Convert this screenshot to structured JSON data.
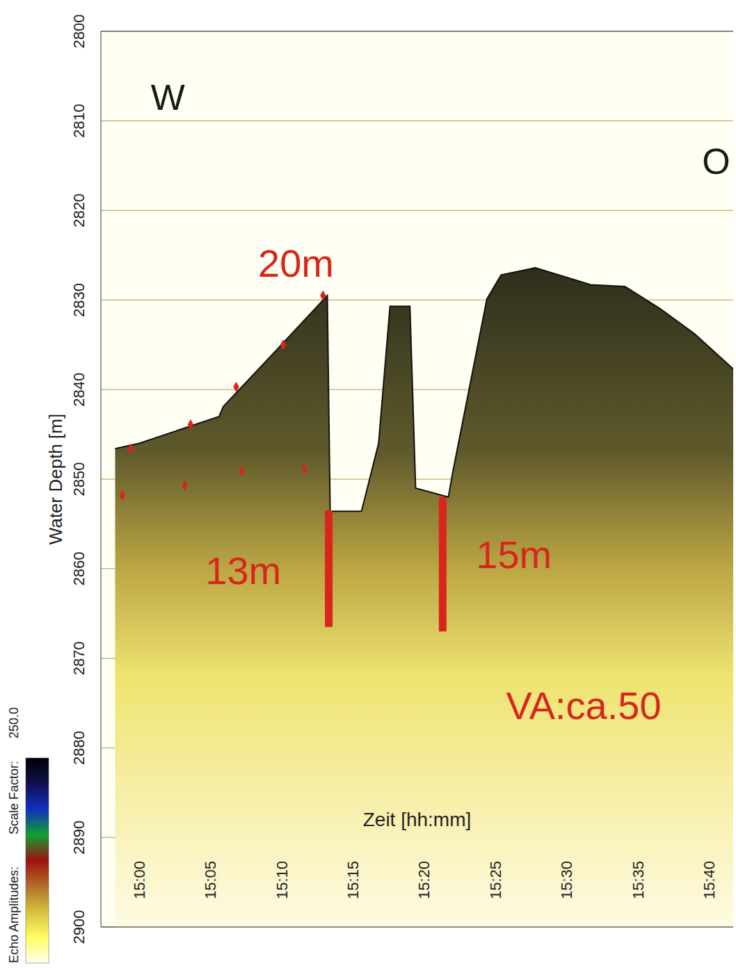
{
  "chart_data": {
    "type": "area",
    "xlabel": "Zeit [hh:mm]",
    "ylabel": "Water Depth [m]",
    "color": "#111111",
    "x": [
      898.3,
      900,
      905.6,
      905.9,
      909.8,
      913.2,
      913.4,
      915.6,
      916.8,
      917.6,
      919.0,
      919.4,
      921.7,
      922.0,
      924.4,
      925.4,
      927.8,
      931.7,
      934.1,
      936.6,
      939.0,
      941.7
    ],
    "values": [
      2846.6,
      2846,
      2843,
      2841.9,
      2835.3,
      2829.5,
      2853.6,
      2853.6,
      2846,
      2830.7,
      2830.7,
      2851,
      2852,
      2849.3,
      2829.9,
      2827.2,
      2826.4,
      2828.3,
      2828.5,
      2831,
      2833.8,
      2837.7
    ],
    "xlim": [
      897.3,
      941.7
    ],
    "xticks": [
      {
        "value": 900,
        "label": "15:00"
      },
      {
        "value": 905,
        "label": "15:05"
      },
      {
        "value": 910,
        "label": "15:10"
      },
      {
        "value": 915,
        "label": "15:15"
      },
      {
        "value": 920,
        "label": "15:20"
      },
      {
        "value": 925,
        "label": "15:25"
      },
      {
        "value": 930,
        "label": "15:30"
      },
      {
        "value": 935,
        "label": "15:35"
      },
      {
        "value": 940,
        "label": "15:40"
      }
    ],
    "ylim": [
      2800,
      2900
    ],
    "yticks": [
      2800,
      2810,
      2820,
      2830,
      2840,
      2850,
      2860,
      2870,
      2880,
      2890,
      2900
    ],
    "grid": true,
    "markers": [
      {
        "color": "#d8261c",
        "marker": "diamond",
        "x": [
          899.4,
          903.6,
          906.8,
          910.1,
          912.9
        ],
        "values": [
          2846.6,
          2843.9,
          2839.7,
          2835.0,
          2829.5
        ]
      },
      {
        "color": "#d8261c",
        "marker": "diamond",
        "x": [
          898.8,
          903.2,
          907.2,
          911.6
        ],
        "values": [
          2851.8,
          2850.7,
          2849.1,
          2848.9
        ]
      }
    ],
    "thickness_markers": [
      {
        "label": "13m",
        "color": "#d8261c",
        "x": 913.3,
        "from": 2853.5,
        "to": 2866.5,
        "label_x": 907.3,
        "label_y": 2860.2
      },
      {
        "label": "15m",
        "color": "#d8261c",
        "x": 921.3,
        "from": 2852,
        "to": 2867,
        "label_x": 926.3,
        "label_y": 2858.4
      }
    ],
    "annotations": [
      {
        "text": "20m",
        "color": "#d8261c",
        "x": 911.0,
        "y": 2825.9
      },
      {
        "text": "VA:ca.50",
        "color": "#d8261c",
        "x": 931.2,
        "y": 2875.3
      }
    ],
    "direction_labels": [
      {
        "text": "W",
        "color": "#1a1a1a",
        "x": 902.0,
        "y": 2807.4
      },
      {
        "text": "O",
        "color": "#1a1a1a",
        "x": 940.5,
        "y": 2814.5
      }
    ],
    "colorbar": {
      "label": "Echo Amplitudes:",
      "scale_label": "Scale Factor:",
      "scale_factor": {
        "value": 250,
        "label": "250.0"
      },
      "colors": [
        "#000000",
        "#101050",
        "#1030c0",
        "#10a030",
        "#a01010",
        "#b07028",
        "#d8c040",
        "#ffff60",
        "#fffff0"
      ]
    }
  }
}
